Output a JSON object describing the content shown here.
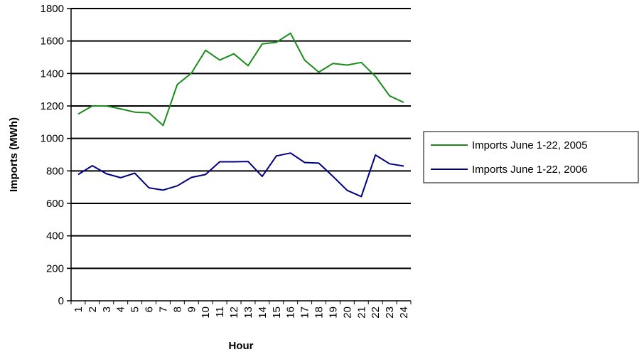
{
  "chart_data": {
    "type": "line",
    "title": "",
    "xlabel": "Hour",
    "ylabel": "Imports (MWh)",
    "categories": [
      "1",
      "2",
      "3",
      "4",
      "5",
      "6",
      "7",
      "8",
      "9",
      "10",
      "11",
      "12",
      "13",
      "14",
      "15",
      "16",
      "17",
      "18",
      "19",
      "20",
      "21",
      "22",
      "23",
      "24"
    ],
    "ylim": [
      0,
      1800
    ],
    "yticks": [
      0,
      200,
      400,
      600,
      800,
      1000,
      1200,
      1400,
      1600,
      1800
    ],
    "grid": "horizontal",
    "legend_position": "right",
    "series": [
      {
        "name": "Imports June 1-22, 2005",
        "color": "#1a8c1a",
        "values": [
          1150,
          1200,
          1200,
          1182,
          1162,
          1158,
          1080,
          1332,
          1402,
          1543,
          1483,
          1521,
          1448,
          1582,
          1592,
          1648,
          1482,
          1408,
          1462,
          1452,
          1468,
          1382,
          1262,
          1222
        ]
      },
      {
        "name": "Imports June 1-22, 2006",
        "color": "#000080",
        "values": [
          778,
          832,
          782,
          758,
          786,
          696,
          682,
          708,
          760,
          778,
          856,
          856,
          858,
          766,
          892,
          910,
          852,
          848,
          766,
          680,
          642,
          898,
          844,
          830
        ]
      }
    ]
  }
}
